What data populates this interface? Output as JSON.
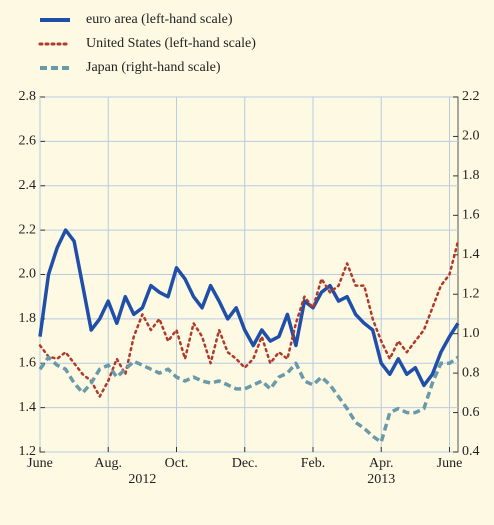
{
  "chart_data": {
    "type": "line",
    "categories": [
      "June",
      null,
      null,
      null,
      null,
      null,
      null,
      null,
      "Aug.",
      null,
      null,
      null,
      null,
      null,
      null,
      null,
      "Oct.",
      null,
      null,
      null,
      null,
      null,
      null,
      null,
      "Dec.",
      null,
      null,
      null,
      null,
      null,
      null,
      null,
      "Feb.",
      null,
      null,
      null,
      null,
      null,
      null,
      null,
      "Apr.",
      null,
      null,
      null,
      null,
      null,
      null,
      null,
      "June",
      null
    ],
    "year_labels": [
      "2012",
      "2013"
    ],
    "ylim": [
      1.2,
      2.8
    ],
    "yticks": [
      1.2,
      1.4,
      1.6,
      1.8,
      2.0,
      2.2,
      2.4,
      2.6,
      2.8
    ],
    "y2lim": [
      0.4,
      2.2
    ],
    "y2ticks": [
      0.4,
      0.6,
      0.8,
      1.0,
      1.2,
      1.4,
      1.6,
      1.8,
      2.0,
      2.2
    ],
    "grid": true,
    "series": [
      {
        "name": "euro area (left-hand scale)",
        "color": "#1f4fa8",
        "style": "solid",
        "values": [
          1.72,
          2.0,
          2.12,
          2.2,
          2.15,
          1.95,
          1.75,
          1.8,
          1.88,
          1.78,
          1.9,
          1.82,
          1.85,
          1.95,
          1.92,
          1.9,
          2.03,
          1.98,
          1.9,
          1.85,
          1.95,
          1.88,
          1.8,
          1.85,
          1.75,
          1.68,
          1.75,
          1.7,
          1.72,
          1.82,
          1.68,
          1.88,
          1.85,
          1.92,
          1.95,
          1.88,
          1.9,
          1.82,
          1.78,
          1.75,
          1.6,
          1.55,
          1.62,
          1.55,
          1.58,
          1.5,
          1.55,
          1.65,
          1.72,
          1.78
        ]
      },
      {
        "name": "United States (left-hand scale)",
        "color": "#b03a2a",
        "style": "dotted",
        "values": [
          1.68,
          1.63,
          1.62,
          1.65,
          1.6,
          1.55,
          1.52,
          1.45,
          1.52,
          1.62,
          1.55,
          1.72,
          1.82,
          1.75,
          1.8,
          1.7,
          1.75,
          1.62,
          1.78,
          1.72,
          1.6,
          1.75,
          1.65,
          1.62,
          1.58,
          1.62,
          1.72,
          1.6,
          1.65,
          1.62,
          1.78,
          1.9,
          1.85,
          1.98,
          1.92,
          1.95,
          2.05,
          1.95,
          1.95,
          1.8,
          1.7,
          1.62,
          1.7,
          1.65,
          1.7,
          1.75,
          1.85,
          1.95,
          2.0,
          2.15
        ]
      },
      {
        "name": "Japan (right-hand scale)",
        "color": "#6a9aaa",
        "style": "dashed",
        "axis": "y2",
        "values": [
          0.82,
          0.88,
          0.84,
          0.82,
          0.75,
          0.7,
          0.75,
          0.82,
          0.84,
          0.78,
          0.82,
          0.86,
          0.84,
          0.82,
          0.8,
          0.82,
          0.78,
          0.76,
          0.78,
          0.76,
          0.75,
          0.76,
          0.74,
          0.72,
          0.72,
          0.74,
          0.76,
          0.72,
          0.78,
          0.8,
          0.85,
          0.76,
          0.74,
          0.78,
          0.74,
          0.68,
          0.62,
          0.55,
          0.52,
          0.48,
          0.45,
          0.6,
          0.62,
          0.6,
          0.6,
          0.62,
          0.75,
          0.85,
          0.85,
          0.88
        ]
      }
    ]
  }
}
